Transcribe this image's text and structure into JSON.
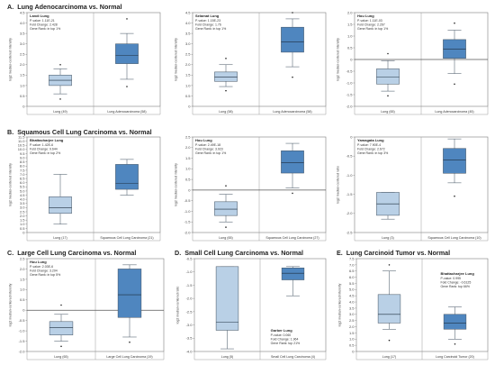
{
  "sections": [
    {
      "id": "A",
      "label": "A.",
      "title": "Lung Adenocarcinoma vs. Normal"
    },
    {
      "id": "B",
      "label": "B.",
      "title": "Squamous Cell Lung Carcinoma vs. Normal"
    },
    {
      "id": "C",
      "label": "C.",
      "title": "Large Cell Lung Carcinoma vs. Normal"
    },
    {
      "id": "D",
      "label": "D.",
      "title": "Small Cell Lung Carcinoma vs. Normal"
    },
    {
      "id": "E",
      "label": "E.",
      "title": "Lung Carcinoid Tumor vs. Normal"
    }
  ],
  "chart_data": [
    {
      "type": "box",
      "section": "A",
      "ylabel": "log2 median-centered intensity",
      "ylim": [
        0,
        4.5
      ],
      "yticks": [
        0,
        0.5,
        1.0,
        1.5,
        2.0,
        2.5,
        3.0,
        3.5,
        4.0,
        4.5
      ],
      "ytick_labels": [
        "0",
        "0.5",
        "1.0",
        "1.5",
        "2.0",
        "2.5",
        "3.0",
        "3.5",
        "4.0",
        "4.5"
      ],
      "baseline": null,
      "categories": [
        "Lung (49)",
        "Lung Adenocarcinoma (58)"
      ],
      "boxes": [
        {
          "whisker_low": 0.6,
          "q1": 1.0,
          "median": 1.25,
          "q3": 1.5,
          "whisker_high": 1.8,
          "outliers": [
            0.35,
            2.0
          ]
        },
        {
          "whisker_low": 1.3,
          "q1": 2.05,
          "median": 2.45,
          "q3": 3.0,
          "whisker_high": 3.5,
          "outliers": [
            0.95,
            4.2
          ]
        }
      ],
      "info": {
        "title": "Landi Lung",
        "lines": [
          "P-value: 1.11E-21",
          "Fold Change: 2.428",
          "Gene Rank: in top 1%"
        ],
        "position": "top-left"
      }
    },
    {
      "type": "box",
      "section": "A",
      "ylabel": "log2 median-centered intensity",
      "ylim": [
        0,
        4.5
      ],
      "yticks": [
        0,
        0.5,
        1.0,
        1.5,
        2.0,
        2.5,
        3.0,
        3.5,
        4.0,
        4.5
      ],
      "ytick_labels": [
        "0",
        "0.5",
        "1.0",
        "1.5",
        "2.0",
        "2.5",
        "3.0",
        "3.5",
        "4.0",
        "4.5"
      ],
      "baseline": null,
      "categories": [
        "Lung (58)",
        "Lung Adenocarcinoma (58)"
      ],
      "boxes": [
        {
          "whisker_low": 0.95,
          "q1": 1.2,
          "median": 1.4,
          "q3": 1.65,
          "whisker_high": 2.0,
          "outliers": [
            0.75,
            2.3
          ]
        },
        {
          "whisker_low": 1.9,
          "q1": 2.6,
          "median": 3.1,
          "q3": 3.8,
          "whisker_high": 4.2,
          "outliers": [
            1.4,
            4.5
          ]
        }
      ],
      "info": {
        "title": "Selamat Lung",
        "lines": [
          "P-value: 1.15E-23",
          "Fold Change: 1.76",
          "Gene Rank: in top 1%"
        ],
        "position": "top-left"
      }
    },
    {
      "type": "box",
      "section": "A",
      "ylabel": "log2 median-centered intensity",
      "ylim": [
        -2.0,
        2.0
      ],
      "yticks": [
        -2.0,
        -1.5,
        -1.0,
        -0.5,
        0,
        0.5,
        1.0,
        1.5,
        2.0
      ],
      "ytick_labels": [
        "-2.0",
        "-1.5",
        "-1.0",
        "-0.5",
        "0",
        "0.5",
        "1.0",
        "1.5",
        "2.0"
      ],
      "baseline": 0,
      "categories": [
        "Lung (65)",
        "Lung Adenocarcinoma (45)"
      ],
      "boxes": [
        {
          "whisker_low": -1.35,
          "q1": -1.05,
          "median": -0.75,
          "q3": -0.4,
          "whisker_high": -0.05,
          "outliers": [
            -1.55,
            0.25
          ]
        },
        {
          "whisker_low": -0.6,
          "q1": 0.05,
          "median": 0.45,
          "q3": 0.85,
          "whisker_high": 1.25,
          "outliers": [
            -1.05,
            1.55
          ]
        }
      ],
      "info": {
        "title": "Hou Lung",
        "lines": [
          "P-value: 1.11E-03",
          "Fold Change: 2.267",
          "Gene Rank: in top 1%"
        ],
        "position": "top-left"
      }
    },
    {
      "type": "box",
      "section": "B",
      "ylabel": "log2 median-centered intensity",
      "ylim": [
        0,
        11.5
      ],
      "yticks": [
        0,
        0.5,
        1.0,
        1.5,
        2.0,
        2.5,
        3.0,
        3.5,
        4.0,
        4.5,
        5.0,
        5.5,
        6.0,
        6.5,
        7.0,
        7.5,
        8.0,
        8.5,
        9.0,
        9.5,
        10.0,
        10.5,
        11.0,
        11.5
      ],
      "ytick_labels": [
        "0",
        "0.5",
        "1.0",
        "1.5",
        "2.0",
        "2.5",
        "3.0",
        "3.5",
        "4.0",
        "4.5",
        "5.0",
        "5.5",
        "6.0",
        "6.5",
        "7.0",
        "7.5",
        "8.0",
        "8.5",
        "9.0",
        "9.5",
        "10.0",
        "10.5",
        "11.0",
        "11.5"
      ],
      "baseline": null,
      "categories": [
        "Lung (17)",
        "Squamous Cell Lung Carcinoma (21)"
      ],
      "boxes": [
        {
          "whisker_low": 1.0,
          "q1": 2.3,
          "median": 3.0,
          "q3": 4.3,
          "whisker_high": 7.0,
          "outliers": []
        },
        {
          "whisker_low": 4.5,
          "q1": 5.2,
          "median": 5.9,
          "q3": 8.2,
          "whisker_high": 8.8,
          "outliers": []
        }
      ],
      "info": {
        "title": "Bhattacharjee Lung",
        "lines": [
          "P-value: 1.42E-6",
          "Fold Change: 9.644",
          "Gene Rank: in top 2%"
        ],
        "position": "top-left"
      }
    },
    {
      "type": "box",
      "section": "B",
      "ylabel": "log2 median-centered intensity",
      "ylim": [
        -2.0,
        2.5
      ],
      "yticks": [
        -2.0,
        -1.5,
        -1.0,
        -0.5,
        0,
        0.5,
        1.0,
        1.5,
        2.0,
        2.5
      ],
      "ytick_labels": [
        "-2.0",
        "-1.5",
        "-1.0",
        "-0.5",
        "0",
        "0.5",
        "1.0",
        "1.5",
        "2.0",
        "2.5"
      ],
      "baseline": 0,
      "categories": [
        "Lung (65)",
        "Squamous Cell Lung Carcinoma (27)"
      ],
      "boxes": [
        {
          "whisker_low": -1.5,
          "q1": -1.2,
          "median": -0.9,
          "q3": -0.55,
          "whisker_high": -0.2,
          "outliers": [
            -1.75,
            0.2
          ]
        },
        {
          "whisker_low": 0.1,
          "q1": 0.8,
          "median": 1.3,
          "q3": 1.85,
          "whisker_high": 2.2,
          "outliers": [
            -0.15
          ]
        }
      ],
      "info": {
        "title": "Hou Lung",
        "lines": [
          "P-value: 2.49E-18",
          "Fold Change: 3.923",
          "Gene Rank: in top 1%"
        ],
        "position": "top-left"
      }
    },
    {
      "type": "box",
      "section": "B",
      "ylabel": "log2 median-centered ratio",
      "ylim": [
        -2.5,
        0
      ],
      "yticks": [
        -2.5,
        -2.0,
        -1.5,
        -1.0,
        -0.5,
        0
      ],
      "ytick_labels": [
        "-2.5",
        "-2.0",
        "-1.5",
        "-1.0",
        "-0.5",
        "0"
      ],
      "baseline": null,
      "categories": [
        "Lung (3)",
        "Squamous Cell Lung Carcinoma (10)"
      ],
      "boxes": [
        {
          "whisker_low": -2.15,
          "q1": -2.05,
          "median": -1.75,
          "q3": -1.45,
          "whisker_high": -1.45,
          "outliers": []
        },
        {
          "whisker_low": -1.2,
          "q1": -0.95,
          "median": -0.6,
          "q3": -0.3,
          "whisker_high": -0.05,
          "outliers": [
            -1.55
          ]
        }
      ],
      "info": {
        "title": "Yamagata Lung",
        "lines": [
          "P-value: 7.90E-4",
          "Fold Change: 2.672",
          "Gene Rank: in top 3%"
        ],
        "position": "top-left"
      }
    },
    {
      "type": "box",
      "section": "C",
      "ylabel": "log2 median-centered intensity",
      "ylim": [
        -2.0,
        2.5
      ],
      "yticks": [
        -2.0,
        -1.5,
        -1.0,
        -0.5,
        0,
        0.5,
        1.0,
        1.5,
        2.0,
        2.5
      ],
      "ytick_labels": [
        "-2.0",
        "-1.5",
        "-1.0",
        "-0.5",
        "0",
        "0.5",
        "1.0",
        "1.5",
        "2.0",
        "2.5"
      ],
      "baseline": 0,
      "categories": [
        "Lung (65)",
        "Large Cell Lung Carcinoma (19)"
      ],
      "boxes": [
        {
          "whisker_low": -1.5,
          "q1": -1.2,
          "median": -0.85,
          "q3": -0.55,
          "whisker_high": -0.2,
          "outliers": [
            -1.75,
            0.25
          ]
        },
        {
          "whisker_low": -1.3,
          "q1": -0.35,
          "median": 0.75,
          "q3": 2.0,
          "whisker_high": 2.2,
          "outliers": [
            -1.55
          ]
        }
      ],
      "info": {
        "title": "Hou Lung",
        "lines": [
          "P-value: 2.03E-6",
          "Fold Change: 3.204",
          "Gene Rank: in top 5%"
        ],
        "position": "top-left"
      }
    },
    {
      "type": "box",
      "section": "D",
      "ylabel": "log2 median-centered ratio",
      "ylim": [
        -4.0,
        -0.5
      ],
      "yticks": [
        -4.0,
        -3.5,
        -3.0,
        -2.5,
        -2.0,
        -1.5,
        -1.0,
        -0.5
      ],
      "ytick_labels": [
        "-4.0",
        "-3.5",
        "-3.0",
        "-2.5",
        "-2.0",
        "-1.5",
        "-1.0",
        "-0.5"
      ],
      "baseline": null,
      "categories": [
        "Lung (5)",
        "Small Cell Lung Carcinoma (4)"
      ],
      "boxes": [
        {
          "whisker_low": -3.9,
          "q1": -3.2,
          "median": -2.9,
          "q3": -0.8,
          "whisker_high": -0.8,
          "outliers": []
        },
        {
          "whisker_low": -1.9,
          "q1": -1.3,
          "median": -1.05,
          "q3": -0.85,
          "whisker_high": -0.8,
          "outliers": []
        }
      ],
      "info": {
        "title": "Garber Lung",
        "lines": [
          "P-value: 0.060",
          "Fold Change: 1.964",
          "Gene Rank: top 21%"
        ],
        "position": "bottom-right"
      }
    },
    {
      "type": "box",
      "section": "E",
      "ylabel": "log2 median-centered intensity",
      "ylim": [
        0,
        7.5
      ],
      "yticks": [
        0,
        0.5,
        1.0,
        1.5,
        2.0,
        2.5,
        3.0,
        3.5,
        4.0,
        4.5,
        5.0,
        5.5,
        6.0,
        6.5,
        7.0,
        7.5
      ],
      "ytick_labels": [
        "0",
        "0.5",
        "1.0",
        "1.5",
        "2.0",
        "2.5",
        "3.0",
        "3.5",
        "4.0",
        "4.5",
        "5.0",
        "5.5",
        "6.0",
        "6.5",
        "7.0",
        "7.5"
      ],
      "baseline": null,
      "categories": [
        "Lung (17)",
        "Lung Carcinoid Tumor (20)"
      ],
      "boxes": [
        {
          "whisker_low": 1.8,
          "q1": 2.3,
          "median": 3.0,
          "q3": 4.6,
          "whisker_high": 6.5,
          "outliers": [
            0.9,
            7.0
          ]
        },
        {
          "whisker_low": 1.0,
          "q1": 1.8,
          "median": 2.3,
          "q3": 3.0,
          "whisker_high": 3.6,
          "outliers": [
            0.6
          ]
        }
      ],
      "info": {
        "title": "Bhattacharjee Lung",
        "lines": [
          "P-value: 0.995",
          "Fold Change: -0.6125",
          "Gene Rank: top 66%"
        ],
        "position": "top-right"
      }
    }
  ]
}
